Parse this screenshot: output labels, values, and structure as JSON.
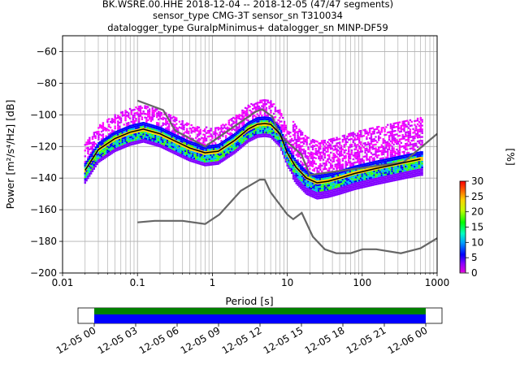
{
  "chart_data": {
    "type": "heatmap",
    "title": [
      "BK.WSRE.00.HHE   2018-12-04 -- 2018-12-05  (47/47 segments)",
      "sensor_type CMG-3T sensor_sn T310034",
      "datalogger_type GuralpMinimus+ datalogger_sn MINP-DF59"
    ],
    "xlabel": "Period [s]",
    "ylabel": "Power [m²/s⁴/Hz] [dB]",
    "xscale": "log",
    "xlim": [
      0.01,
      1000
    ],
    "ylim": [
      -200,
      -50
    ],
    "xticks": [
      "0.01",
      "0.1",
      "1",
      "10",
      "100",
      "1000"
    ],
    "xtick_values": [
      0.01,
      0.1,
      1,
      10,
      100,
      1000
    ],
    "yticks": [
      -200,
      -180,
      -160,
      -140,
      -120,
      -100,
      -80,
      -60
    ],
    "grid": true,
    "colorbar": {
      "label": "[%]",
      "ticks": [
        0,
        5,
        10,
        15,
        20,
        25,
        30
      ],
      "range": [
        0,
        30
      ],
      "colormap": "pqlx"
    },
    "mode_curve": [
      [
        0.02,
        -135
      ],
      [
        0.03,
        -122
      ],
      [
        0.05,
        -115
      ],
      [
        0.08,
        -111
      ],
      [
        0.12,
        -109
      ],
      [
        0.2,
        -112
      ],
      [
        0.3,
        -116
      ],
      [
        0.5,
        -121
      ],
      [
        0.8,
        -124
      ],
      [
        1.2,
        -123
      ],
      [
        2,
        -116
      ],
      [
        3,
        -109
      ],
      [
        4,
        -106
      ],
      [
        5,
        -105.5
      ],
      [
        6,
        -106
      ],
      [
        8,
        -112
      ],
      [
        10,
        -124
      ],
      [
        13,
        -133
      ],
      [
        18,
        -140
      ],
      [
        25,
        -143
      ],
      [
        35,
        -142
      ],
      [
        50,
        -140
      ],
      [
        80,
        -137
      ],
      [
        150,
        -134
      ],
      [
        300,
        -131
      ],
      [
        600,
        -128
      ]
    ],
    "nhnm": [
      [
        0.1,
        -91
      ],
      [
        0.22,
        -97
      ],
      [
        0.32,
        -110
      ],
      [
        0.8,
        -120
      ],
      [
        3.8,
        -98
      ],
      [
        4.6,
        -96.5
      ],
      [
        6.3,
        -101
      ],
      [
        7.9,
        -113
      ],
      [
        15.4,
        -125
      ],
      [
        20,
        -138
      ],
      [
        354.8,
        -130
      ],
      [
        1000,
        -112
      ]
    ],
    "nlnm": [
      [
        0.1,
        -168
      ],
      [
        0.17,
        -167
      ],
      [
        0.4,
        -167
      ],
      [
        0.8,
        -169
      ],
      [
        1.24,
        -163
      ],
      [
        2.4,
        -148
      ],
      [
        4.3,
        -141
      ],
      [
        5,
        -141
      ],
      [
        6,
        -149
      ],
      [
        10,
        -163
      ],
      [
        12,
        -166
      ],
      [
        15.6,
        -162
      ],
      [
        21.9,
        -177
      ],
      [
        31.6,
        -185
      ],
      [
        45,
        -187.5
      ],
      [
        70,
        -187.5
      ],
      [
        101,
        -185
      ],
      [
        154,
        -185
      ],
      [
        328,
        -187.5
      ],
      [
        600,
        -184.4
      ],
      [
        1000,
        -178
      ]
    ],
    "spectrogram": {
      "xlim_labels": [
        "12-05 00",
        "12-05 03",
        "12-05 06",
        "12-05 09",
        "12-05 12",
        "12-05 15",
        "12-05 18",
        "12-05 21",
        "12-06 00"
      ],
      "data_colors": [
        "#008000",
        "#0000ff"
      ]
    }
  }
}
